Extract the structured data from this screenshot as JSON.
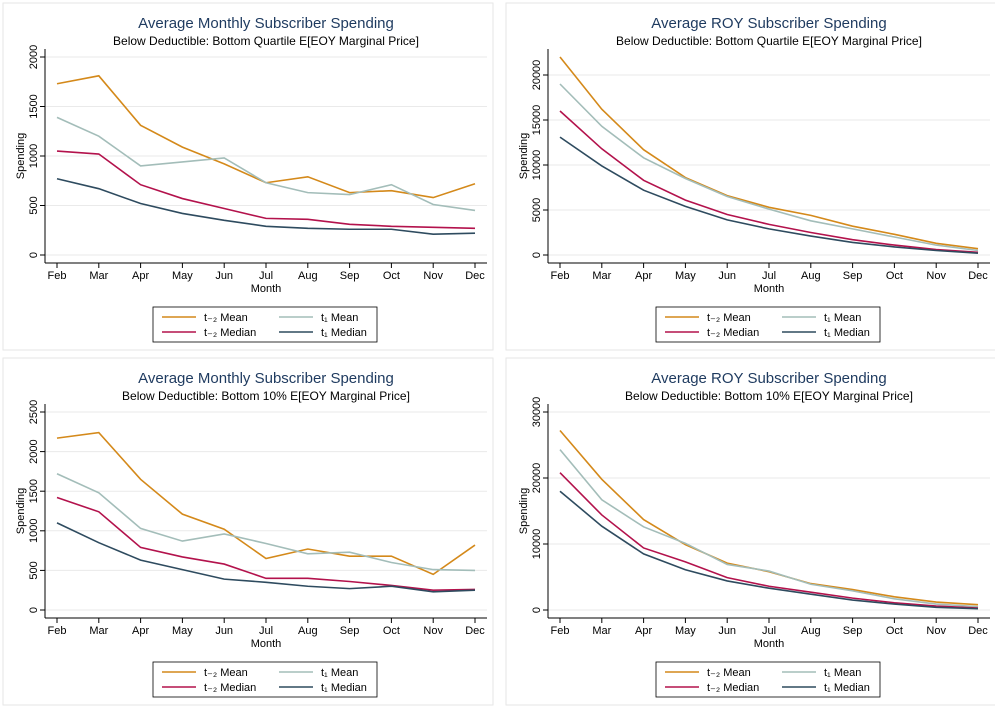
{
  "chart_data": [
    {
      "type": "line",
      "title": "Average Monthly Subscriber Spending",
      "subtitle": "Below Deductible: Bottom Quartile E[EOY Marginal Price]",
      "x_label": "Month",
      "y_label": "Spending",
      "categories": [
        "Feb",
        "Mar",
        "Apr",
        "May",
        "Jun",
        "Jul",
        "Aug",
        "Sep",
        "Oct",
        "Nov",
        "Dec"
      ],
      "ylim": [
        0,
        2000
      ],
      "yticks": [
        0,
        500,
        1000,
        1500,
        2000
      ],
      "grid": true,
      "series": [
        {
          "name": "t₋₂ Mean",
          "color": "#d4891a",
          "values": [
            1730,
            1810,
            1310,
            1090,
            920,
            730,
            790,
            630,
            650,
            580,
            720
          ]
        },
        {
          "name": "t₁ Mean",
          "color": "#a3bdb9",
          "values": [
            1390,
            1200,
            900,
            940,
            980,
            730,
            630,
            610,
            710,
            510,
            450
          ]
        },
        {
          "name": "t₋₂ Median",
          "color": "#b3124c",
          "values": [
            1050,
            1020,
            710,
            570,
            470,
            370,
            360,
            310,
            290,
            280,
            270
          ]
        },
        {
          "name": "t₁ Median",
          "color": "#2e4b5f",
          "values": [
            770,
            670,
            520,
            420,
            350,
            290,
            270,
            260,
            260,
            210,
            220
          ]
        }
      ]
    },
    {
      "type": "line",
      "title": "Average ROY Subscriber Spending",
      "subtitle": "Below Deductible: Bottom Quartile E[EOY Marginal Price]",
      "x_label": "Month",
      "y_label": "Spending",
      "categories": [
        "Feb",
        "Mar",
        "Apr",
        "May",
        "Jun",
        "Jul",
        "Aug",
        "Sep",
        "Oct",
        "Nov",
        "Dec"
      ],
      "ylim": [
        0,
        22000
      ],
      "yticks": [
        0,
        5000,
        10000,
        15000,
        20000
      ],
      "grid": true,
      "series": [
        {
          "name": "t₋₂ Mean",
          "color": "#d4891a",
          "values": [
            22000,
            16200,
            11700,
            8600,
            6600,
            5300,
            4400,
            3200,
            2300,
            1300,
            700
          ]
        },
        {
          "name": "t₁ Mean",
          "color": "#a3bdb9",
          "values": [
            19000,
            14300,
            10800,
            8500,
            6500,
            5100,
            3800,
            2900,
            2000,
            1100,
            500
          ]
        },
        {
          "name": "t₋₂ Median",
          "color": "#b3124c",
          "values": [
            16000,
            11800,
            8300,
            6100,
            4500,
            3400,
            2500,
            1700,
            1100,
            600,
            300
          ]
        },
        {
          "name": "t₁ Median",
          "color": "#2e4b5f",
          "values": [
            13100,
            9900,
            7200,
            5400,
            3900,
            2900,
            2100,
            1400,
            900,
            500,
            200
          ]
        }
      ]
    },
    {
      "type": "line",
      "title": "Average Monthly Subscriber Spending",
      "subtitle": "Below Deductible: Bottom 10% E[EOY Marginal Price]",
      "x_label": "Month",
      "y_label": "Spending",
      "categories": [
        "Feb",
        "Mar",
        "Apr",
        "May",
        "Jun",
        "Jul",
        "Aug",
        "Sep",
        "Oct",
        "Nov",
        "Dec"
      ],
      "ylim": [
        0,
        2500
      ],
      "yticks": [
        0,
        500,
        1000,
        1500,
        2000,
        2500
      ],
      "grid": true,
      "series": [
        {
          "name": "t₋₂ Mean",
          "color": "#d4891a",
          "values": [
            2170,
            2240,
            1650,
            1210,
            1020,
            650,
            770,
            680,
            680,
            450,
            820
          ]
        },
        {
          "name": "t₁ Mean",
          "color": "#a3bdb9",
          "values": [
            1720,
            1480,
            1030,
            870,
            960,
            840,
            710,
            730,
            600,
            510,
            500
          ]
        },
        {
          "name": "t₋₂ Median",
          "color": "#b3124c",
          "values": [
            1420,
            1240,
            790,
            670,
            580,
            400,
            400,
            360,
            310,
            250,
            260
          ]
        },
        {
          "name": "t₁ Median",
          "color": "#2e4b5f",
          "values": [
            1100,
            850,
            630,
            510,
            390,
            350,
            300,
            270,
            300,
            230,
            250
          ]
        }
      ]
    },
    {
      "type": "line",
      "title": "Average ROY Subscriber Spending",
      "subtitle": "Below Deductible: Bottom 10% E[EOY Marginal Price]",
      "x_label": "Month",
      "y_label": "Spending",
      "categories": [
        "Feb",
        "Mar",
        "Apr",
        "May",
        "Jun",
        "Jul",
        "Aug",
        "Sep",
        "Oct",
        "Nov",
        "Dec"
      ],
      "ylim": [
        0,
        30000
      ],
      "yticks": [
        0,
        10000,
        20000,
        30000
      ],
      "grid": true,
      "series": [
        {
          "name": "t₋₂ Mean",
          "color": "#d4891a",
          "values": [
            27200,
            19800,
            13700,
            9900,
            7100,
            5800,
            4000,
            3100,
            2000,
            1200,
            800
          ]
        },
        {
          "name": "t₁ Mean",
          "color": "#a3bdb9",
          "values": [
            24300,
            16700,
            12600,
            10100,
            6900,
            5900,
            3900,
            2900,
            1700,
            900,
            500
          ]
        },
        {
          "name": "t₋₂ Median",
          "color": "#b3124c",
          "values": [
            20800,
            14400,
            9400,
            7300,
            4900,
            3600,
            2700,
            1800,
            1100,
            600,
            300
          ]
        },
        {
          "name": "t₁ Median",
          "color": "#2e4b5f",
          "values": [
            18000,
            12700,
            8500,
            6100,
            4400,
            3300,
            2400,
            1500,
            900,
            400,
            200
          ]
        }
      ]
    }
  ]
}
